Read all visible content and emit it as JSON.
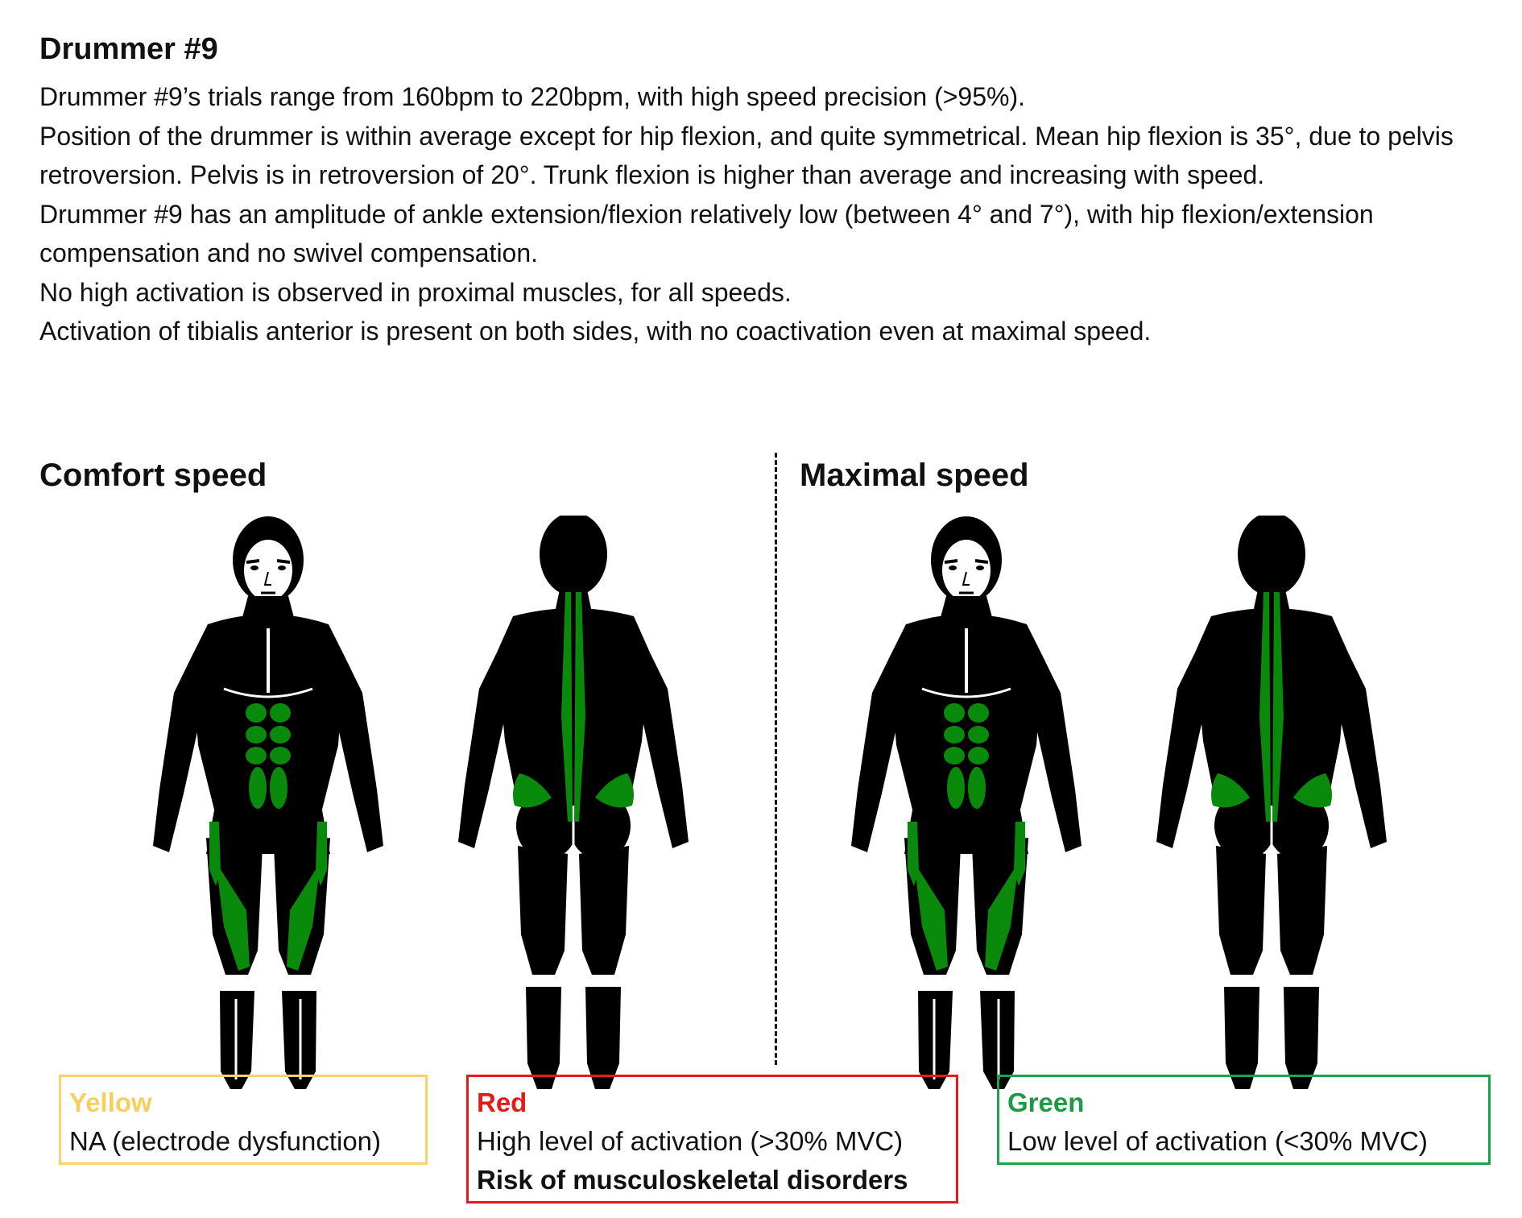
{
  "title": "Drummer #9",
  "description": [
    "Drummer #9’s trials range from 160bpm to 220bpm, with high speed precision (>95%).",
    "Position of the drummer is within average except for hip flexion, and quite symmetrical. Mean hip flexion is 35°, due to pelvis retroversion. Pelvis is in retroversion of 20°. Trunk flexion is higher than average and increasing with speed.",
    "Drummer #9 has an amplitude of ankle extension/flexion relatively low (between 4° and 7°), with hip flexion/extension compensation and no swivel compensation.",
    "No high activation is observed in proximal muscles, for all speeds.",
    "Activation of tibialis anterior is present on both sides, with no coactivation even at maximal speed."
  ],
  "sections": {
    "comfort": "Comfort speed",
    "maximal": "Maximal speed"
  },
  "legend": {
    "yellow": {
      "label": "Yellow",
      "text": "NA (electrode dysfunction)"
    },
    "red": {
      "label": "Red",
      "text": "High level of activation (>30% MVC)",
      "risk": "Risk of musculoskeletal disorders"
    },
    "green": {
      "label": "Green",
      "text": "Low level of activation (<30% MVC)"
    }
  },
  "colors": {
    "body": "#000000",
    "green": "#0a8a0a",
    "yellow": "#f6cf5f",
    "red": "#e41b1b"
  }
}
